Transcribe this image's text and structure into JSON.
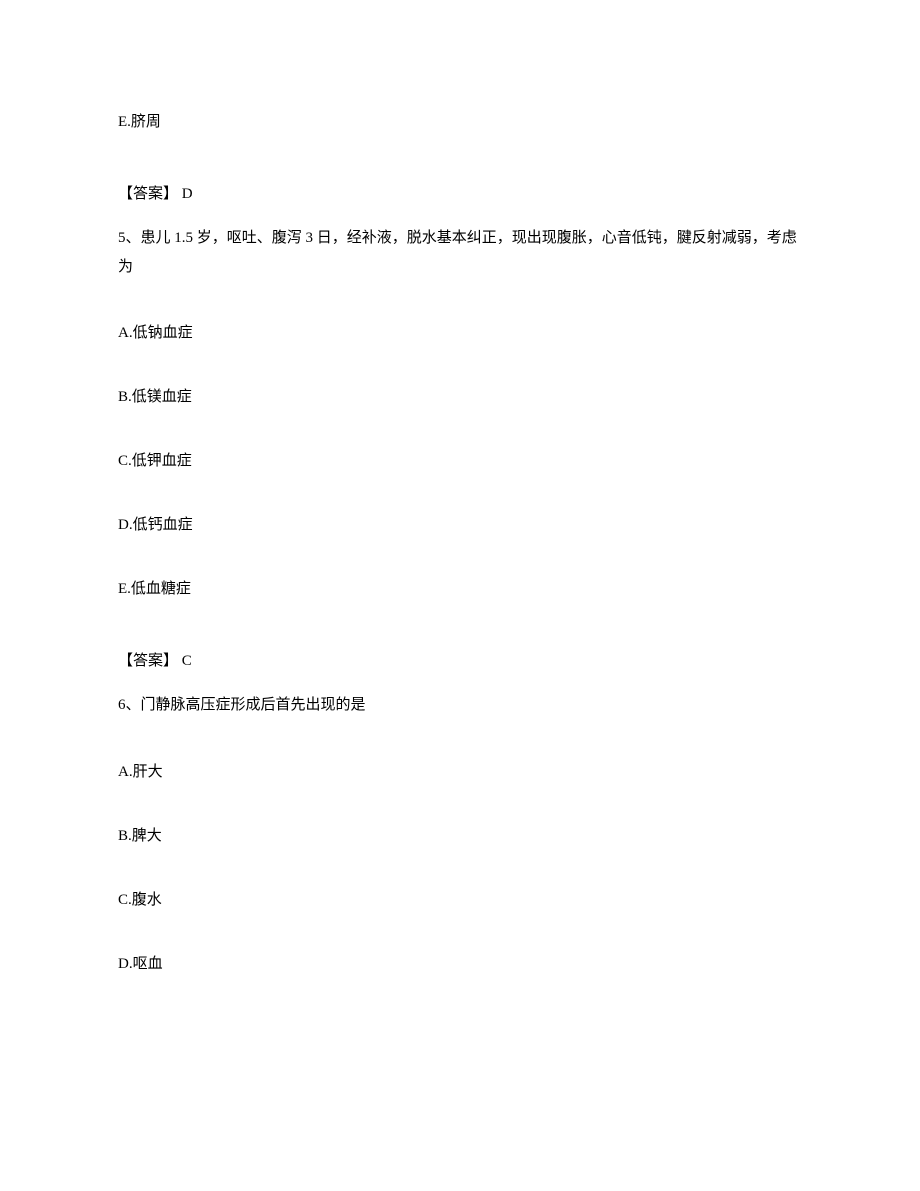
{
  "q4": {
    "optionE": "E.脐周",
    "answerLabel": "【答案】  D"
  },
  "q5": {
    "text": "5、患儿 1.5 岁，呕吐、腹泻 3 日，经补液，脱水基本纠正，现出现腹胀，心音低钝，腱反射减弱，考虑为",
    "optionA": "A.低钠血症",
    "optionB": "B.低镁血症",
    "optionC": "C.低钾血症",
    "optionD": "D.低钙血症",
    "optionE": "E.低血糖症",
    "answerLabel": "【答案】  C"
  },
  "q6": {
    "text": "6、门静脉高压症形成后首先出现的是",
    "optionA": "A.肝大",
    "optionB": "B.脾大",
    "optionC": "C.腹水",
    "optionD": "D.呕血"
  }
}
